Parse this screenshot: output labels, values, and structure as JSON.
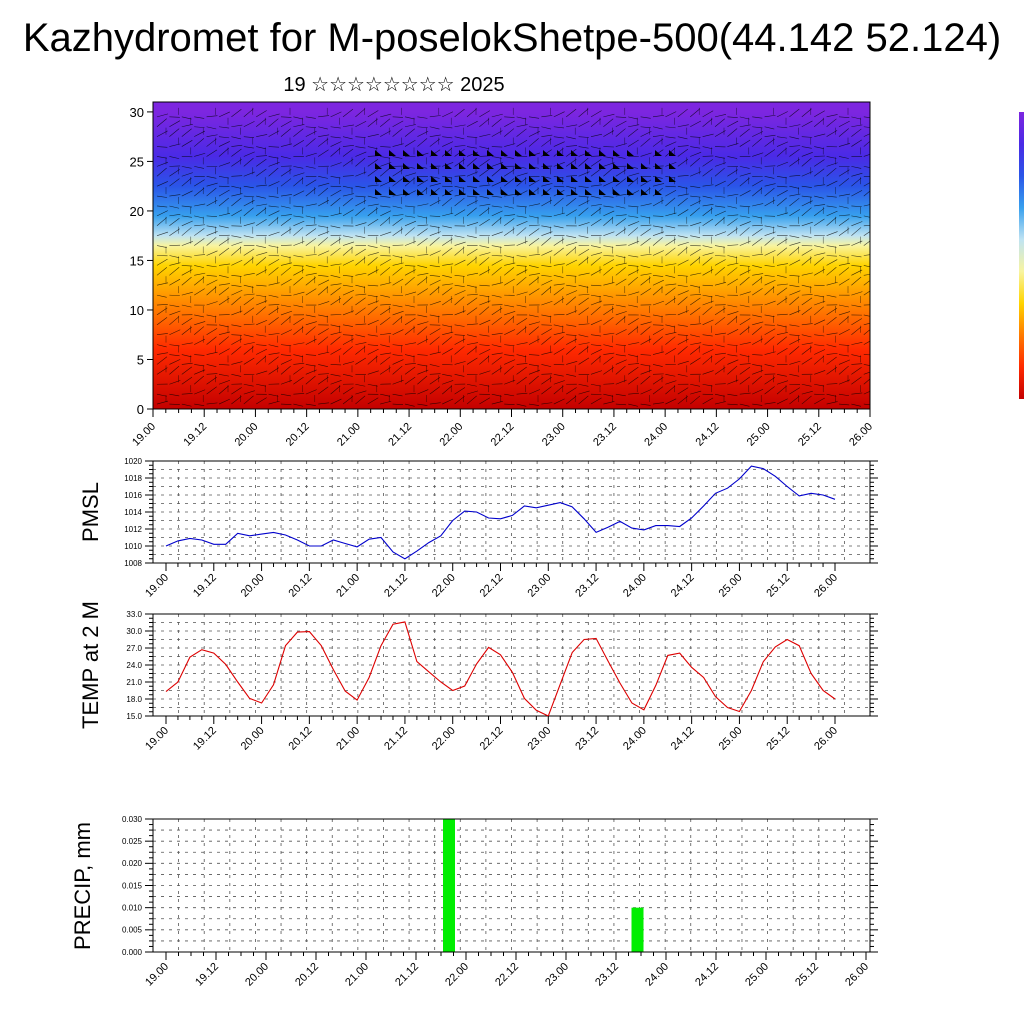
{
  "title": "Kazhydromet for M-poselokShetpe-500(44.142 52.124)",
  "subtitle": "19 ☆☆☆☆☆☆☆☆ 2025",
  "chart_data": [
    {
      "type": "heatmap",
      "name": "cross-section",
      "x_ticks": [
        "19.00",
        "19.12",
        "20.00",
        "20.12",
        "21.00",
        "21.12",
        "22.00",
        "22.12",
        "23.00",
        "23.12",
        "24.00",
        "24.12",
        "25.00",
        "25.12",
        "26.00"
      ],
      "y_ticks": [
        "0",
        "5",
        "10",
        "15",
        "20",
        "25",
        "30"
      ],
      "ylim": [
        0,
        31
      ],
      "colors": [
        "#c40000",
        "#ff2a00",
        "#ff7a00",
        "#ffd400",
        "#f8f4a0",
        "#bfe3f2",
        "#37a0ee",
        "#2a55e8",
        "#4a2ae6",
        "#7d26e0"
      ],
      "color_levels": [
        0,
        6,
        10,
        14.5,
        16.5,
        17.5,
        19.5,
        22.5,
        25.5,
        30
      ]
    },
    {
      "type": "line",
      "ylabel": "PMSL",
      "y_ticks": [
        "1020",
        "1018",
        "1016",
        "1014",
        "1012",
        "1010",
        "1008"
      ],
      "ylim": [
        1008,
        1020
      ],
      "x_ticks": [
        "19.00",
        "19.12",
        "20.00",
        "20.12",
        "21.00",
        "21.12",
        "22.00",
        "22.12",
        "23.00",
        "23.12",
        "24.00",
        "24.12",
        "25.00",
        "25.12",
        "26.00"
      ],
      "color": "#0000cc",
      "values": [
        1010.0,
        1010.6,
        1010.9,
        1010.7,
        1010.2,
        1010.2,
        1011.5,
        1011.2,
        1011.4,
        1011.6,
        1011.3,
        1010.7,
        1010.0,
        1010.0,
        1010.7,
        1010.3,
        1009.9,
        1010.8,
        1011.0,
        1009.3,
        1008.5,
        1009.4,
        1010.4,
        1011.2,
        1013.0,
        1014.1,
        1014.0,
        1013.3,
        1013.2,
        1013.6,
        1014.7,
        1014.5,
        1014.8,
        1015.1,
        1014.6,
        1013.2,
        1011.6,
        1012.2,
        1012.9,
        1012.1,
        1011.9,
        1012.4,
        1012.4,
        1012.3,
        1013.3,
        1014.7,
        1016.2,
        1016.8,
        1017.9,
        1019.4,
        1019.1,
        1018.2,
        1017.0,
        1015.9,
        1016.2,
        1016.0,
        1015.5
      ]
    },
    {
      "type": "line",
      "ylabel": "TEMP at 2 M",
      "y_ticks": [
        "33.0",
        "30.0",
        "27.0",
        "24.0",
        "21.0",
        "18.0",
        "15.0"
      ],
      "ylim": [
        15,
        33
      ],
      "x_ticks": [
        "19.00",
        "19.12",
        "20.00",
        "20.12",
        "21.00",
        "21.12",
        "22.00",
        "22.12",
        "23.00",
        "23.12",
        "24.00",
        "24.12",
        "25.00",
        "25.12",
        "26.00"
      ],
      "color": "#dd0000",
      "values": [
        19.3,
        21.0,
        25.4,
        26.7,
        26.1,
        24.1,
        21.0,
        18.1,
        17.3,
        20.5,
        27.4,
        29.8,
        29.9,
        27.4,
        23.2,
        19.4,
        17.8,
        21.8,
        27.4,
        31.2,
        31.6,
        24.6,
        22.8,
        21.0,
        19.5,
        20.3,
        24.2,
        27.1,
        25.8,
        22.7,
        18.1,
        16.0,
        15.0,
        20.6,
        26.2,
        28.5,
        28.7,
        24.7,
        20.8,
        17.3,
        16.1,
        20.4,
        25.7,
        26.1,
        23.6,
        21.8,
        18.4,
        16.5,
        15.8,
        19.5,
        24.6,
        27.2,
        28.5,
        27.4,
        22.5,
        19.5,
        18.0
      ]
    },
    {
      "type": "bar",
      "ylabel": "PRECIP, mm",
      "y_ticks": [
        "0.030",
        "0.025",
        "0.020",
        "0.015",
        "0.010",
        "0.005",
        "0.000"
      ],
      "ylim": [
        0,
        0.03
      ],
      "x_ticks": [
        "19.00",
        "19.12",
        "20.00",
        "20.12",
        "21.00",
        "21.12",
        "22.00",
        "22.12",
        "23.00",
        "23.12",
        "24.00",
        "24.12",
        "25.00",
        "25.12",
        "26.00"
      ],
      "color": "#00ee00",
      "bars": [
        {
          "x_index": 5.66,
          "value": 0.03
        },
        {
          "x_index": 9.43,
          "value": 0.01
        }
      ]
    }
  ]
}
